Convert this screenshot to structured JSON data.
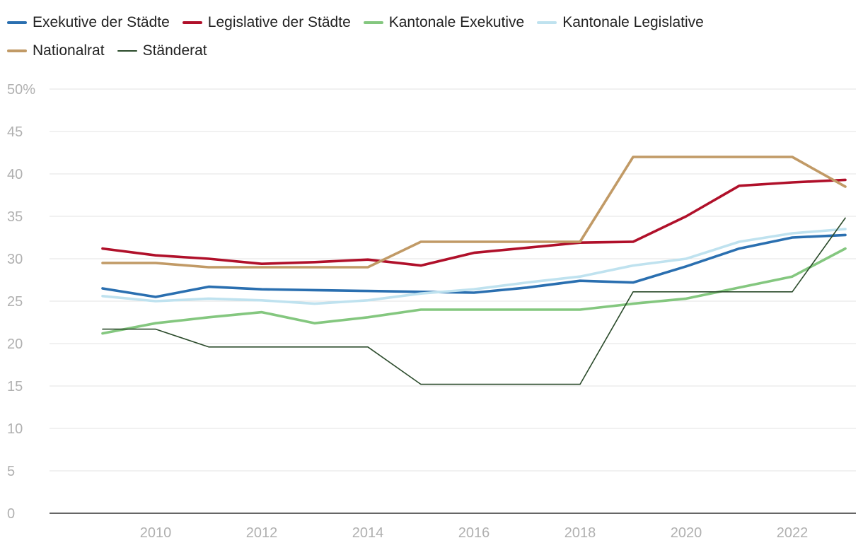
{
  "chart_data": {
    "type": "line",
    "title": "",
    "xlabel": "",
    "ylabel": "",
    "x": [
      2009,
      2010,
      2011,
      2012,
      2013,
      2014,
      2015,
      2016,
      2017,
      2018,
      2019,
      2020,
      2021,
      2022,
      2023
    ],
    "xlim": [
      2008,
      2023.2
    ],
    "ylim": [
      0,
      50
    ],
    "x_ticks": [
      {
        "value": 2010,
        "label": "2010"
      },
      {
        "value": 2012,
        "label": "2012"
      },
      {
        "value": 2014,
        "label": "2014"
      },
      {
        "value": 2016,
        "label": "2016"
      },
      {
        "value": 2018,
        "label": "2018"
      },
      {
        "value": 2020,
        "label": "2020"
      },
      {
        "value": 2022,
        "label": "2022"
      }
    ],
    "y_ticks": [
      {
        "value": 0,
        "label": "0"
      },
      {
        "value": 5,
        "label": "5"
      },
      {
        "value": 10,
        "label": "10"
      },
      {
        "value": 15,
        "label": "15"
      },
      {
        "value": 20,
        "label": "20"
      },
      {
        "value": 25,
        "label": "25"
      },
      {
        "value": 30,
        "label": "30"
      },
      {
        "value": 35,
        "label": "35"
      },
      {
        "value": 40,
        "label": "40"
      },
      {
        "value": 45,
        "label": "45"
      },
      {
        "value": 50,
        "label": "50%"
      }
    ],
    "grid": true,
    "legend_position": "top",
    "series": [
      {
        "name": "Exekutive der Städte",
        "color": "#2a6fb0",
        "weight": "thick",
        "values": [
          26.5,
          25.5,
          26.7,
          26.4,
          26.3,
          26.2,
          26.1,
          26.0,
          26.6,
          27.4,
          27.2,
          29.1,
          31.2,
          32.5,
          32.8
        ]
      },
      {
        "name": "Legislative der Städte",
        "color": "#b0102a",
        "weight": "thick",
        "values": [
          31.2,
          30.4,
          30.0,
          29.4,
          29.6,
          29.9,
          29.2,
          30.7,
          31.3,
          31.9,
          32.0,
          35.0,
          38.6,
          39.0,
          39.3
        ]
      },
      {
        "name": "Kantonale Exekutive",
        "color": "#84c77f",
        "weight": "thick",
        "values": [
          21.2,
          22.4,
          23.1,
          23.7,
          22.4,
          23.1,
          24.0,
          24.0,
          24.0,
          24.0,
          24.7,
          25.3,
          26.6,
          27.9,
          31.2
        ]
      },
      {
        "name": "Kantonale Legislative",
        "color": "#bfe2ef",
        "weight": "thick",
        "values": [
          25.6,
          25.0,
          25.3,
          25.1,
          24.7,
          25.1,
          25.9,
          26.4,
          27.2,
          27.9,
          29.2,
          30.0,
          32.0,
          33.0,
          33.5
        ]
      },
      {
        "name": "Nationalrat",
        "color": "#c19a66",
        "weight": "thick",
        "values": [
          29.5,
          29.5,
          29.0,
          29.0,
          29.0,
          29.0,
          32.0,
          32.0,
          32.0,
          32.0,
          42.0,
          42.0,
          42.0,
          42.0,
          38.5
        ]
      },
      {
        "name": "Ständerat",
        "color": "#2a4a2a",
        "weight": "thin",
        "values": [
          21.7,
          21.7,
          19.6,
          19.6,
          19.6,
          19.6,
          15.2,
          15.2,
          15.2,
          15.2,
          26.1,
          26.1,
          26.1,
          26.1,
          34.8
        ]
      }
    ]
  }
}
